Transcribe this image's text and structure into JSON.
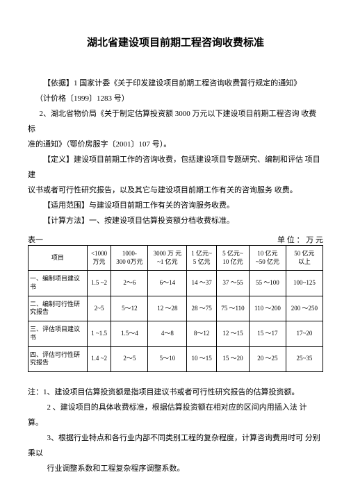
{
  "title": "湖北省建设项目前期工程咨询收费标准",
  "paras": {
    "p1": "【依据】1 国家计委《关于印发建设项目前期工程咨询收费暂行规定的通知》",
    "p2": "（计价格〔1999〕1283 号）",
    "p3a": "2、湖北省物价局《关于制定估算投资额 3000 万元以下建设项目前期工程咨询 收费标",
    "p3b": "准的通知》（鄂价房服字〔2001〕107 号）。",
    "p4a": "【定义】建设项目前期工作的咨询收费，包括建设项目专题研究、编制和评估 项目建",
    "p4b": "议书或者可行性研究报告，以及其它与建设项目前期工作有关的咨询服务 收费。",
    "p5": "【适用范围】与建设项目前期工作有关的咨询服务收费。",
    "p6": "【计算方法】一、按建设项目估算投资额分档收费标准。"
  },
  "tableLabel": "表一",
  "tableUnit": "单 位 ： 万 元",
  "table": {
    "headers": [
      "项目",
      "<1000\n万元",
      "1000-\n300 0万元",
      "3000 万 元\n~1 亿元",
      "1 亿元~\n5 亿元",
      "5 亿元~\n10 亿元",
      "10 亿元\n~50 亿元",
      "50 亿元\n以上"
    ],
    "rows": [
      [
        "一、编制项目建议书",
        "1.5 ~2",
        "2～6",
        "6～14",
        "14 ～37",
        "37 ～55",
        "55 ～100",
        "100~125"
      ],
      [
        "二、编制可行性研究报告",
        "2~5",
        "5～12",
        "12 ～28",
        "28 ～75",
        "75 ～110",
        "110 ～200",
        "200 ～250"
      ],
      [
        "三、评估项目建议书",
        "1 ~1.5",
        "1.5～4",
        "4～8",
        "8～12",
        "12 ～15",
        "15 ～17",
        "17~20"
      ],
      [
        "四、评估可行性研究报告",
        "1.4 ~2",
        "2～5",
        "5～10",
        "10 ～15",
        "15 ～20",
        "20 ～25",
        "25~35"
      ]
    ]
  },
  "notes": {
    "n1": "注：1、建设项目估算投资额是指项目建议书或者可行性研究报告的估算投资额。",
    "n2": "2 、建设项目的具体收费标准，根据估算投资额在相对应的区间内用插入法 计 算。",
    "n3a": "3、根据行业特点和各行业内部不同类别工程的复杂程度，计算咨询费用时可 分别乘以",
    "n3b": "行业调整系数和工程复杂程序调整系数。"
  }
}
